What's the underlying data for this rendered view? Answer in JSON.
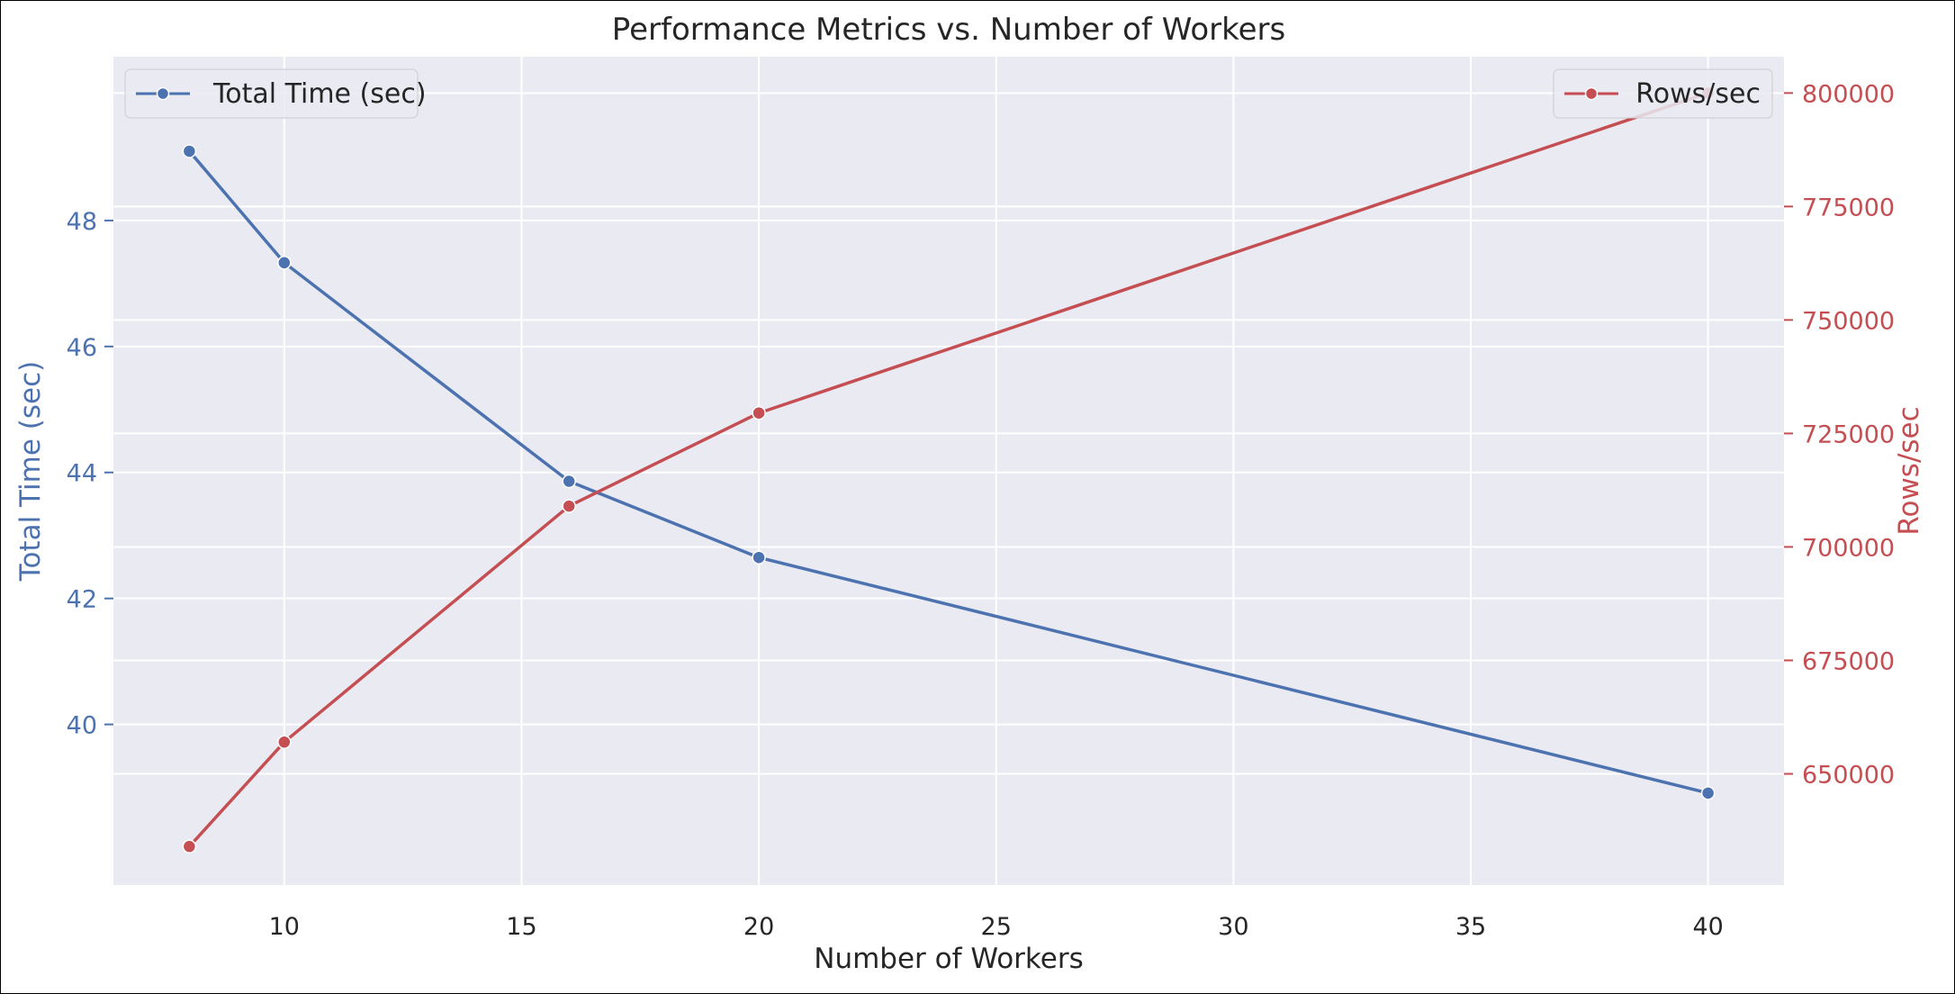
{
  "chart_data": {
    "type": "line",
    "title": "Performance Metrics vs. Number of Workers",
    "xlabel": "Number of Workers",
    "x": [
      8,
      10,
      16,
      20,
      40
    ],
    "xlim": [
      6.4,
      41.6
    ],
    "xticks": [
      10,
      15,
      20,
      25,
      30,
      35,
      40
    ],
    "grid": true,
    "series": [
      {
        "name": "Total Time (sec)",
        "axis": "left",
        "color": "#4c72b0",
        "marker": "circle",
        "values": [
          49.1,
          47.33,
          43.86,
          42.65,
          38.91
        ]
      },
      {
        "name": "Rows/sec",
        "axis": "right",
        "color": "#c44e52",
        "marker": "circle",
        "values": [
          634000,
          657000,
          709000,
          729500,
          800000
        ]
      }
    ],
    "y_left": {
      "label": "Total Time (sec)",
      "color": "#4c72b0",
      "lim": [
        37.45,
        50.6
      ],
      "ticks": [
        40,
        42,
        44,
        46,
        48
      ]
    },
    "y_right": {
      "label": "Rows/sec",
      "color": "#c44e52",
      "lim": [
        625500,
        808000
      ],
      "ticks": [
        650000,
        675000,
        700000,
        725000,
        750000,
        775000,
        800000
      ]
    },
    "legends": [
      {
        "placement": "top-left",
        "entries": [
          "Total Time (sec)"
        ]
      },
      {
        "placement": "top-right",
        "entries": [
          "Rows/sec"
        ]
      }
    ]
  }
}
